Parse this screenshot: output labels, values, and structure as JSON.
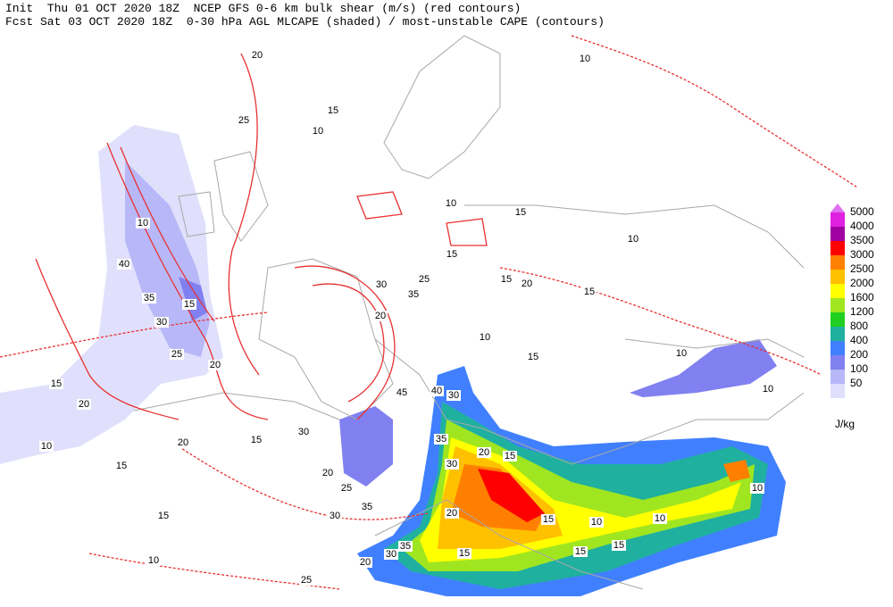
{
  "header": {
    "line1": "Init  Thu 01 OCT 2020 18Z  NCEP GFS 0-6 km bulk shear (m/s) (red contours)",
    "line2": "Fcst Sat 03 OCT 2020 18Z  0-30 hPa AGL MLCAPE (shaded) / most-unstable CAPE (contours)"
  },
  "legend": {
    "unit": "J/kg",
    "levels": [
      {
        "label": 5000,
        "color": "#e070f0"
      },
      {
        "label": 4000,
        "color": "#e020e0"
      },
      {
        "label": 3500,
        "color": "#a000a0"
      },
      {
        "label": 3000,
        "color": "#ff0000"
      },
      {
        "label": 2500,
        "color": "#ff8000"
      },
      {
        "label": 2000,
        "color": "#ffc000"
      },
      {
        "label": 1600,
        "color": "#ffff00"
      },
      {
        "label": 1200,
        "color": "#a0e620"
      },
      {
        "label": 800,
        "color": "#20d020"
      },
      {
        "label": 400,
        "color": "#20b0a0"
      },
      {
        "label": 200,
        "color": "#4080ff"
      },
      {
        "label": 100,
        "color": "#8080f0"
      },
      {
        "label": 50,
        "color": "#b8b8f8"
      }
    ],
    "bottom_color": "#e0e0fc"
  },
  "contour_labels": [
    20,
    25,
    15,
    10,
    10,
    10,
    40,
    35,
    30,
    15,
    25,
    20,
    15,
    20,
    10,
    20,
    15,
    15,
    30,
    20,
    25,
    35,
    30,
    15,
    10,
    25,
    15,
    30,
    35,
    25,
    20,
    45,
    40,
    30,
    35,
    20,
    15,
    30,
    20,
    15,
    10,
    10,
    15,
    15,
    15,
    35,
    30,
    20,
    10,
    10,
    10,
    10,
    15,
    15,
    20,
    10,
    15,
    10,
    15
  ]
}
